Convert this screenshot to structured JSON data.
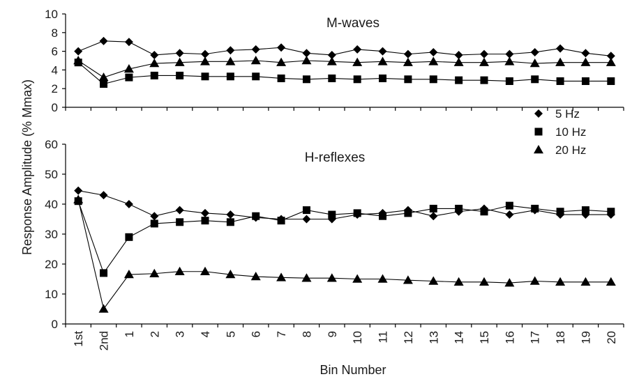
{
  "chart_data": {
    "type": "line",
    "categories": [
      "1st",
      "2nd",
      "1",
      "2",
      "3",
      "4",
      "5",
      "6",
      "7",
      "8",
      "9",
      "10",
      "11",
      "12",
      "13",
      "14",
      "15",
      "16",
      "17",
      "18",
      "19",
      "20"
    ],
    "xlabel": "Bin Number",
    "ylabel": "Response Amplitude (% Mmax)",
    "legend": {
      "placement": "right",
      "entries": [
        {
          "name": "5 Hz",
          "marker": "diamond"
        },
        {
          "name": "10 Hz",
          "marker": "square"
        },
        {
          "name": "20 Hz",
          "marker": "triangle"
        }
      ]
    },
    "panels": [
      {
        "title": "M-waves",
        "ylim": [
          0,
          10
        ],
        "yticks": [
          "0",
          "2",
          "4",
          "6",
          "8",
          "10"
        ],
        "series": [
          {
            "name": "5 Hz",
            "values": [
              6.0,
              7.1,
              7.0,
              5.6,
              5.8,
              5.7,
              6.1,
              6.2,
              6.4,
              5.8,
              5.6,
              6.2,
              6.0,
              5.7,
              5.9,
              5.6,
              5.7,
              5.7,
              5.9,
              6.3,
              5.8,
              5.5
            ]
          },
          {
            "name": "10 Hz",
            "values": [
              4.8,
              2.5,
              3.2,
              3.4,
              3.4,
              3.3,
              3.3,
              3.3,
              3.1,
              3.0,
              3.1,
              3.0,
              3.1,
              3.0,
              3.0,
              2.9,
              2.9,
              2.8,
              3.0,
              2.8,
              2.8,
              2.8
            ]
          },
          {
            "name": "20 Hz",
            "values": [
              5.0,
              3.2,
              4.1,
              4.7,
              4.8,
              4.9,
              4.9,
              5.0,
              4.8,
              5.0,
              4.9,
              4.8,
              4.9,
              4.8,
              4.9,
              4.8,
              4.8,
              4.9,
              4.7,
              4.8,
              4.8,
              4.8
            ]
          }
        ]
      },
      {
        "title": "H-reflexes",
        "ylim": [
          0,
          60
        ],
        "yticks": [
          "0",
          "10",
          "20",
          "30",
          "40",
          "50",
          "60"
        ],
        "series": [
          {
            "name": "5 Hz",
            "values": [
              44.5,
              43.0,
              40.0,
              36.0,
              38.0,
              37.0,
              36.5,
              35.5,
              35.0,
              35.0,
              35.0,
              36.5,
              37.0,
              38.0,
              36.0,
              37.5,
              38.5,
              36.5,
              38.0,
              36.5,
              36.5,
              36.5
            ]
          },
          {
            "name": "10 Hz",
            "values": [
              41.0,
              17.0,
              29.0,
              33.5,
              34.0,
              34.5,
              34.0,
              36.0,
              34.5,
              38.0,
              36.5,
              37.0,
              36.0,
              37.0,
              38.5,
              38.5,
              37.5,
              39.5,
              38.5,
              37.5,
              38.0,
              37.5
            ]
          },
          {
            "name": "20 Hz",
            "values": [
              41.5,
              5.0,
              16.5,
              16.8,
              17.5,
              17.5,
              16.5,
              15.8,
              15.5,
              15.3,
              15.3,
              15.0,
              15.0,
              14.6,
              14.3,
              14.0,
              14.0,
              13.7,
              14.3,
              14.0,
              14.0,
              14.0
            ]
          }
        ]
      }
    ]
  }
}
